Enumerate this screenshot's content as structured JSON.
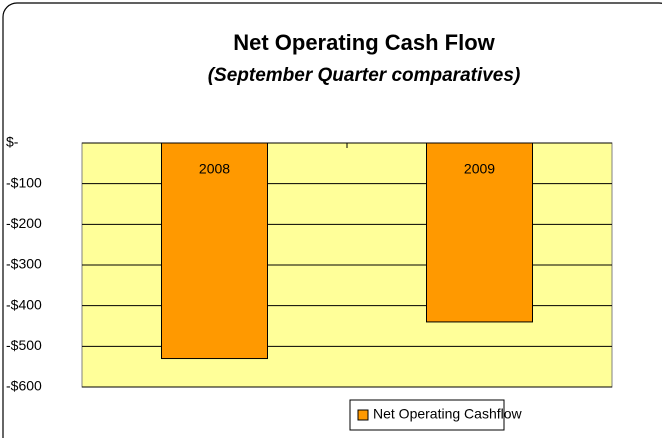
{
  "chart_data": {
    "type": "bar",
    "title": "Net Operating Cash Flow",
    "subtitle": "(September Quarter comparatives)",
    "categories": [
      "2008",
      "2009"
    ],
    "series": [
      {
        "name": "Net Operating Cashflow",
        "color": "#ff9900",
        "values": [
          -530,
          -440
        ]
      }
    ],
    "ylim": [
      -600,
      0
    ],
    "yticks": [
      {
        "value": 0,
        "label": "$-"
      },
      {
        "value": -100,
        "label": "-$100"
      },
      {
        "value": -200,
        "label": "-$200"
      },
      {
        "value": -300,
        "label": "-$300"
      },
      {
        "value": -400,
        "label": "-$400"
      },
      {
        "value": -500,
        "label": "-$500"
      },
      {
        "value": -600,
        "label": "-$600"
      }
    ],
    "grid": true,
    "legend": "bottom"
  }
}
